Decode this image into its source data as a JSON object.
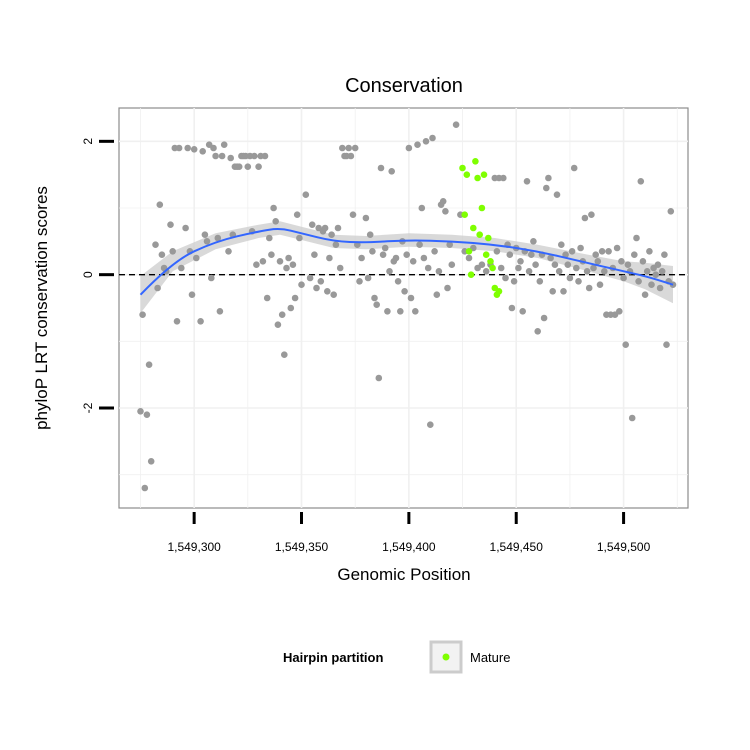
{
  "chart_data": {
    "type": "scatter",
    "title": "Conservation",
    "xlabel": "Genomic Position",
    "ylabel": "phyloP LRT conservation scores",
    "xlim": [
      1549265,
      1549530
    ],
    "ylim": [
      -3.5,
      2.5
    ],
    "x_ticks": [
      {
        "value": 1549300,
        "label": "1,549,300"
      },
      {
        "value": 1549350,
        "label": "1,549,350"
      },
      {
        "value": 1549400,
        "label": "1,549,400"
      },
      {
        "value": 1549450,
        "label": "1,549,450"
      },
      {
        "value": 1549500,
        "label": "1,549,500"
      }
    ],
    "y_ticks": [
      {
        "value": -2,
        "label": "-2"
      },
      {
        "value": 0,
        "label": "0"
      },
      {
        "value": 2,
        "label": "2"
      }
    ],
    "grid": true,
    "reference_line": {
      "y": 0,
      "style": "dashed"
    },
    "legend": {
      "title": "Hairpin partition",
      "position": "bottom",
      "entries": [
        {
          "label": "Mature",
          "color": "#7fff00"
        }
      ]
    },
    "colors": {
      "other": "#999999",
      "mature": "#7fff00",
      "smooth": "#3366ff",
      "band": "#cccccc"
    },
    "series": [
      {
        "group": "other",
        "points": [
          [
            1549275,
            -2.05
          ],
          [
            1549276,
            -0.6
          ],
          [
            1549277,
            -3.2
          ],
          [
            1549278,
            -2.1
          ],
          [
            1549279,
            -1.35
          ],
          [
            1549280,
            -2.8
          ],
          [
            1549282,
            0.45
          ],
          [
            1549283,
            -0.2
          ],
          [
            1549284,
            1.05
          ],
          [
            1549285,
            0.3
          ],
          [
            1549286,
            0.1
          ],
          [
            1549287,
            0.05
          ],
          [
            1549289,
            0.75
          ],
          [
            1549290,
            0.35
          ],
          [
            1549291,
            1.9
          ],
          [
            1549292,
            -0.7
          ],
          [
            1549293,
            1.9
          ],
          [
            1549294,
            0.1
          ],
          [
            1549296,
            0.7
          ],
          [
            1549297,
            1.9
          ],
          [
            1549298,
            0.35
          ],
          [
            1549299,
            -0.3
          ],
          [
            1549300,
            1.88
          ],
          [
            1549301,
            0.25
          ],
          [
            1549303,
            -0.7
          ],
          [
            1549304,
            1.85
          ],
          [
            1549305,
            0.6
          ],
          [
            1549306,
            0.5
          ],
          [
            1549307,
            1.95
          ],
          [
            1549308,
            -0.05
          ],
          [
            1549309,
            1.9
          ],
          [
            1549310,
            1.78
          ],
          [
            1549311,
            0.55
          ],
          [
            1549312,
            -0.55
          ],
          [
            1549313,
            1.78
          ],
          [
            1549314,
            1.95
          ],
          [
            1549316,
            0.35
          ],
          [
            1549317,
            1.75
          ],
          [
            1549318,
            0.6
          ],
          [
            1549319,
            1.62
          ],
          [
            1549320,
            1.62
          ],
          [
            1549321,
            1.62
          ],
          [
            1549322,
            1.78
          ],
          [
            1549323,
            1.78
          ],
          [
            1549324,
            1.78
          ],
          [
            1549325,
            1.62
          ],
          [
            1549326,
            1.78
          ],
          [
            1549327,
            0.65
          ],
          [
            1549328,
            1.78
          ],
          [
            1549329,
            0.15
          ],
          [
            1549330,
            1.62
          ],
          [
            1549331,
            1.78
          ],
          [
            1549332,
            0.2
          ],
          [
            1549333,
            1.78
          ],
          [
            1549334,
            -0.35
          ],
          [
            1549335,
            0.55
          ],
          [
            1549336,
            0.3
          ],
          [
            1549337,
            1.0
          ],
          [
            1549338,
            0.8
          ],
          [
            1549339,
            -0.75
          ],
          [
            1549340,
            0.2
          ],
          [
            1549341,
            -0.6
          ],
          [
            1549342,
            -1.2
          ],
          [
            1549343,
            0.1
          ],
          [
            1549344,
            0.25
          ],
          [
            1549345,
            -0.5
          ],
          [
            1549346,
            0.15
          ],
          [
            1549347,
            -0.35
          ],
          [
            1549348,
            0.9
          ],
          [
            1549349,
            0.55
          ],
          [
            1549350,
            -0.15
          ],
          [
            1549352,
            1.2
          ],
          [
            1549354,
            -0.05
          ],
          [
            1549355,
            0.75
          ],
          [
            1549356,
            0.3
          ],
          [
            1549357,
            -0.2
          ],
          [
            1549358,
            0.7
          ],
          [
            1549359,
            -0.1
          ],
          [
            1549360,
            0.65
          ],
          [
            1549361,
            0.7
          ],
          [
            1549362,
            -0.25
          ],
          [
            1549363,
            0.25
          ],
          [
            1549364,
            0.6
          ],
          [
            1549365,
            -0.3
          ],
          [
            1549366,
            0.45
          ],
          [
            1549367,
            0.7
          ],
          [
            1549368,
            0.1
          ],
          [
            1549369,
            1.9
          ],
          [
            1549370,
            1.78
          ],
          [
            1549371,
            1.78
          ],
          [
            1549372,
            1.9
          ],
          [
            1549373,
            1.78
          ],
          [
            1549374,
            0.9
          ],
          [
            1549375,
            1.9
          ],
          [
            1549376,
            0.45
          ],
          [
            1549377,
            -0.1
          ],
          [
            1549378,
            0.25
          ],
          [
            1549380,
            0.85
          ],
          [
            1549381,
            -0.05
          ],
          [
            1549382,
            0.6
          ],
          [
            1549383,
            0.35
          ],
          [
            1549384,
            -0.35
          ],
          [
            1549385,
            -0.45
          ],
          [
            1549386,
            -1.55
          ],
          [
            1549387,
            1.6
          ],
          [
            1549388,
            0.3
          ],
          [
            1549389,
            0.4
          ],
          [
            1549390,
            -0.55
          ],
          [
            1549391,
            0.05
          ],
          [
            1549392,
            1.55
          ],
          [
            1549393,
            0.2
          ],
          [
            1549394,
            0.25
          ],
          [
            1549395,
            -0.1
          ],
          [
            1549396,
            -0.55
          ],
          [
            1549397,
            0.5
          ],
          [
            1549398,
            -0.25
          ],
          [
            1549399,
            0.3
          ],
          [
            1549400,
            1.9
          ],
          [
            1549401,
            -0.35
          ],
          [
            1549402,
            0.2
          ],
          [
            1549403,
            -0.55
          ],
          [
            1549404,
            1.95
          ],
          [
            1549405,
            0.45
          ],
          [
            1549406,
            1.0
          ],
          [
            1549407,
            0.25
          ],
          [
            1549408,
            2.0
          ],
          [
            1549409,
            0.1
          ],
          [
            1549410,
            -2.25
          ],
          [
            1549411,
            2.05
          ],
          [
            1549412,
            0.35
          ],
          [
            1549413,
            -0.3
          ],
          [
            1549414,
            0.05
          ],
          [
            1549415,
            1.05
          ],
          [
            1549416,
            1.1
          ],
          [
            1549417,
            0.95
          ],
          [
            1549418,
            -0.2
          ],
          [
            1549419,
            0.45
          ],
          [
            1549420,
            0.15
          ],
          [
            1549422,
            2.25
          ],
          [
            1549424,
            0.9
          ],
          [
            1549426,
            0.35
          ],
          [
            1549428,
            0.25
          ],
          [
            1549430,
            0.4
          ],
          [
            1549432,
            0.1
          ],
          [
            1549434,
            0.15
          ],
          [
            1549436,
            0.05
          ],
          [
            1549438,
            0.15
          ],
          [
            1549440,
            1.45
          ],
          [
            1549441,
            0.35
          ],
          [
            1549442,
            1.45
          ],
          [
            1549443,
            0.1
          ],
          [
            1549444,
            1.45
          ],
          [
            1549445,
            -0.05
          ],
          [
            1549446,
            0.45
          ],
          [
            1549447,
            0.3
          ],
          [
            1549448,
            -0.5
          ],
          [
            1549449,
            -0.1
          ],
          [
            1549450,
            0.4
          ],
          [
            1549451,
            0.1
          ],
          [
            1549452,
            0.2
          ],
          [
            1549453,
            -0.55
          ],
          [
            1549454,
            0.35
          ],
          [
            1549455,
            1.4
          ],
          [
            1549456,
            0.05
          ],
          [
            1549457,
            0.3
          ],
          [
            1549458,
            0.5
          ],
          [
            1549459,
            0.15
          ],
          [
            1549460,
            -0.85
          ],
          [
            1549461,
            -0.1
          ],
          [
            1549462,
            0.3
          ],
          [
            1549463,
            -0.65
          ],
          [
            1549464,
            1.3
          ],
          [
            1549465,
            1.45
          ],
          [
            1549466,
            0.25
          ],
          [
            1549467,
            -0.25
          ],
          [
            1549468,
            0.15
          ],
          [
            1549469,
            1.2
          ],
          [
            1549470,
            0.05
          ],
          [
            1549471,
            0.45
          ],
          [
            1549472,
            -0.25
          ],
          [
            1549473,
            0.3
          ],
          [
            1549474,
            0.15
          ],
          [
            1549475,
            -0.05
          ],
          [
            1549476,
            0.35
          ],
          [
            1549477,
            1.6
          ],
          [
            1549478,
            0.1
          ],
          [
            1549479,
            -0.1
          ],
          [
            1549480,
            0.4
          ],
          [
            1549481,
            0.2
          ],
          [
            1549482,
            0.85
          ],
          [
            1549483,
            0.05
          ],
          [
            1549484,
            -0.2
          ],
          [
            1549485,
            0.9
          ],
          [
            1549486,
            0.1
          ],
          [
            1549487,
            0.3
          ],
          [
            1549488,
            0.2
          ],
          [
            1549489,
            -0.15
          ],
          [
            1549490,
            0.35
          ],
          [
            1549491,
            0.05
          ],
          [
            1549492,
            -0.6
          ],
          [
            1549493,
            0.35
          ],
          [
            1549494,
            -0.6
          ],
          [
            1549495,
            0.1
          ],
          [
            1549496,
            -0.6
          ],
          [
            1549497,
            0.4
          ],
          [
            1549498,
            -0.55
          ],
          [
            1549499,
            0.2
          ],
          [
            1549500,
            -0.05
          ],
          [
            1549501,
            -1.05
          ],
          [
            1549502,
            0.15
          ],
          [
            1549503,
            0.05
          ],
          [
            1549504,
            -2.15
          ],
          [
            1549505,
            0.3
          ],
          [
            1549506,
            0.55
          ],
          [
            1549507,
            -0.1
          ],
          [
            1549508,
            1.4
          ],
          [
            1549509,
            0.2
          ],
          [
            1549510,
            -0.3
          ],
          [
            1549511,
            0.05
          ],
          [
            1549512,
            0.35
          ],
          [
            1549513,
            -0.15
          ],
          [
            1549514,
            0.1
          ],
          [
            1549515,
            0.0
          ],
          [
            1549516,
            0.15
          ],
          [
            1549517,
            -0.2
          ],
          [
            1549518,
            0.05
          ],
          [
            1549519,
            0.3
          ],
          [
            1549520,
            -1.05
          ],
          [
            1549521,
            -0.1
          ],
          [
            1549522,
            0.95
          ],
          [
            1549523,
            -0.15
          ]
        ]
      },
      {
        "group": "mature",
        "points": [
          [
            1549425,
            1.6
          ],
          [
            1549426,
            0.9
          ],
          [
            1549427,
            1.5
          ],
          [
            1549428,
            0.35
          ],
          [
            1549429,
            0.0
          ],
          [
            1549430,
            0.7
          ],
          [
            1549431,
            1.7
          ],
          [
            1549432,
            1.45
          ],
          [
            1549433,
            0.6
          ],
          [
            1549434,
            1.0
          ],
          [
            1549435,
            1.5
          ],
          [
            1549436,
            0.3
          ],
          [
            1549437,
            0.55
          ],
          [
            1549438,
            0.2
          ],
          [
            1549439,
            0.1
          ],
          [
            1549440,
            -0.2
          ],
          [
            1549441,
            -0.3
          ],
          [
            1549442,
            -0.25
          ]
        ]
      }
    ],
    "smooth": {
      "x": [
        1549275,
        1549290,
        1549310,
        1549330,
        1549340,
        1549350,
        1549365,
        1549380,
        1549400,
        1549420,
        1549440,
        1549460,
        1549480,
        1549500,
        1549510,
        1549523
      ],
      "y": [
        -0.3,
        0.2,
        0.5,
        0.65,
        0.7,
        0.62,
        0.5,
        0.48,
        0.52,
        0.5,
        0.45,
        0.35,
        0.2,
        0.05,
        -0.02,
        -0.15
      ],
      "se": [
        0.28,
        0.15,
        0.12,
        0.1,
        0.1,
        0.1,
        0.1,
        0.1,
        0.1,
        0.1,
        0.1,
        0.1,
        0.12,
        0.15,
        0.2,
        0.28
      ]
    }
  }
}
